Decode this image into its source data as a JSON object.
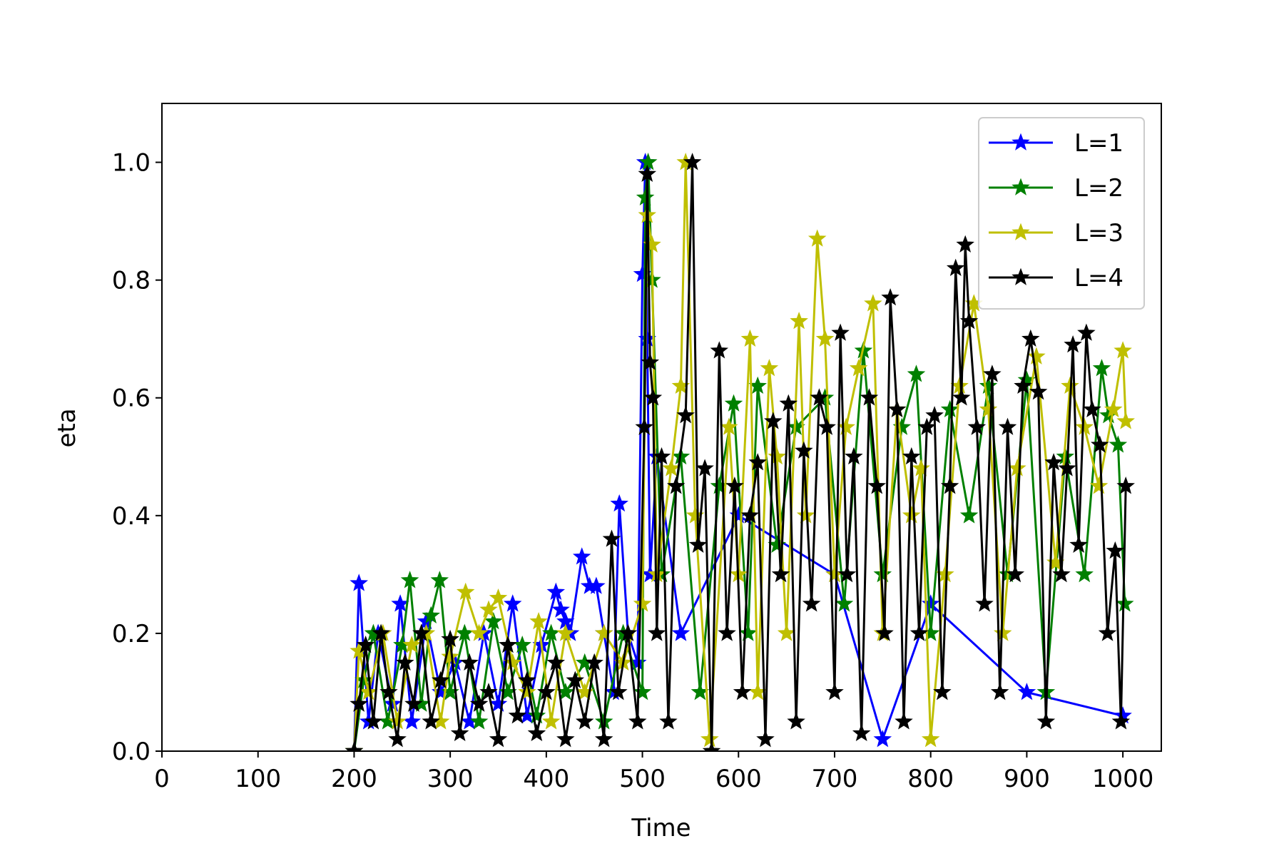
{
  "chart_data": {
    "type": "line",
    "title": "",
    "xlabel": "Time",
    "ylabel": "eta",
    "xlim": [
      0,
      1040
    ],
    "ylim": [
      0,
      1.1
    ],
    "xticks": [
      0,
      100,
      200,
      300,
      400,
      500,
      600,
      700,
      800,
      900,
      1000
    ],
    "yticks": [
      0.0,
      0.2,
      0.4,
      0.6,
      0.8,
      1.0
    ],
    "xtick_labels": [
      "0",
      "100",
      "200",
      "300",
      "400",
      "500",
      "600",
      "700",
      "800",
      "900",
      "1000"
    ],
    "ytick_labels": [
      "0.0",
      "0.2",
      "0.4",
      "0.6",
      "0.8",
      "1.0"
    ],
    "grid": false,
    "legend_position": "top-right",
    "marker": "star",
    "series": [
      {
        "name": "L=1",
        "color": "#0000ff",
        "x": [
          200,
          205,
          215,
          225,
          240,
          248,
          260,
          275,
          290,
          305,
          320,
          335,
          350,
          365,
          380,
          395,
          410,
          415,
          420,
          425,
          437,
          445,
          452,
          460,
          470,
          476,
          485,
          495,
          500,
          503,
          505,
          508,
          515,
          540,
          600,
          700,
          750,
          800,
          900,
          1000
        ],
        "y": [
          0.0,
          0.285,
          0.05,
          0.2,
          0.08,
          0.25,
          0.05,
          0.22,
          0.1,
          0.15,
          0.05,
          0.2,
          0.08,
          0.25,
          0.06,
          0.18,
          0.27,
          0.24,
          0.22,
          0.2,
          0.33,
          0.28,
          0.28,
          0.2,
          0.1,
          0.42,
          0.2,
          0.15,
          0.81,
          1.0,
          0.7,
          0.3,
          0.5,
          0.2,
          0.4,
          0.3,
          0.02,
          0.25,
          0.1,
          0.06
        ]
      },
      {
        "name": "L=2",
        "color": "#008000",
        "x": [
          200,
          210,
          220,
          235,
          250,
          258,
          270,
          280,
          289,
          300,
          315,
          330,
          345,
          360,
          375,
          390,
          405,
          420,
          440,
          460,
          480,
          500,
          503,
          506,
          510,
          520,
          540,
          560,
          580,
          595,
          610,
          620,
          640,
          660,
          690,
          710,
          730,
          750,
          770,
          785,
          800,
          820,
          840,
          860,
          880,
          900,
          920,
          940,
          960,
          978,
          985,
          995,
          1002
        ],
        "y": [
          0.0,
          0.12,
          0.2,
          0.05,
          0.18,
          0.29,
          0.08,
          0.23,
          0.29,
          0.1,
          0.2,
          0.05,
          0.22,
          0.1,
          0.18,
          0.06,
          0.2,
          0.1,
          0.15,
          0.05,
          0.2,
          0.1,
          0.94,
          1.0,
          0.8,
          0.3,
          0.5,
          0.1,
          0.45,
          0.59,
          0.2,
          0.62,
          0.35,
          0.55,
          0.6,
          0.25,
          0.68,
          0.3,
          0.55,
          0.64,
          0.2,
          0.58,
          0.4,
          0.62,
          0.3,
          0.63,
          0.1,
          0.5,
          0.3,
          0.65,
          0.57,
          0.52,
          0.25
        ]
      },
      {
        "name": "L=3",
        "color": "#bfbf00",
        "x": [
          200,
          205,
          215,
          230,
          245,
          260,
          275,
          290,
          300,
          316,
          330,
          340,
          350,
          365,
          380,
          392,
          405,
          420,
          440,
          460,
          480,
          500,
          505,
          510,
          515,
          530,
          540,
          545,
          555,
          570,
          590,
          600,
          612,
          620,
          632,
          640,
          650,
          663,
          670,
          682,
          690,
          700,
          712,
          725,
          740,
          750,
          765,
          780,
          790,
          800,
          815,
          830,
          845,
          860,
          875,
          890,
          910,
          930,
          945,
          960,
          975,
          990,
          1000,
          1003
        ],
        "y": [
          0.0,
          0.17,
          0.1,
          0.2,
          0.05,
          0.18,
          0.2,
          0.05,
          0.16,
          0.27,
          0.2,
          0.24,
          0.26,
          0.15,
          0.1,
          0.22,
          0.05,
          0.2,
          0.1,
          0.2,
          0.15,
          0.25,
          0.91,
          0.86,
          0.3,
          0.48,
          0.62,
          1.0,
          0.4,
          0.02,
          0.55,
          0.3,
          0.7,
          0.1,
          0.65,
          0.5,
          0.2,
          0.73,
          0.4,
          0.87,
          0.7,
          0.3,
          0.55,
          0.65,
          0.76,
          0.2,
          0.58,
          0.4,
          0.48,
          0.02,
          0.3,
          0.62,
          0.76,
          0.58,
          0.2,
          0.48,
          0.67,
          0.32,
          0.62,
          0.55,
          0.45,
          0.58,
          0.68,
          0.56
        ]
      },
      {
        "name": "L=4",
        "color": "#000000",
        "x": [
          200,
          205,
          212,
          220,
          228,
          236,
          245,
          253,
          262,
          270,
          280,
          290,
          300,
          310,
          320,
          330,
          340,
          350,
          360,
          370,
          380,
          390,
          400,
          410,
          420,
          430,
          440,
          450,
          460,
          468,
          475,
          485,
          495,
          502,
          505,
          508,
          511,
          515,
          520,
          527,
          535,
          545,
          552,
          558,
          565,
          572,
          580,
          588,
          596,
          604,
          612,
          620,
          628,
          636,
          644,
          652,
          660,
          668,
          676,
          684,
          692,
          700,
          706,
          713,
          720,
          728,
          736,
          744,
          752,
          758,
          765,
          772,
          780,
          788,
          796,
          804,
          812,
          820,
          826,
          832,
          836,
          840,
          848,
          856,
          864,
          872,
          880,
          888,
          896,
          904,
          912,
          920,
          928,
          936,
          942,
          948,
          954,
          962,
          968,
          976,
          984,
          992,
          998,
          1003
        ],
        "y": [
          0.0,
          0.08,
          0.18,
          0.05,
          0.2,
          0.1,
          0.02,
          0.15,
          0.08,
          0.2,
          0.05,
          0.12,
          0.19,
          0.03,
          0.15,
          0.08,
          0.1,
          0.02,
          0.18,
          0.06,
          0.12,
          0.03,
          0.1,
          0.15,
          0.02,
          0.12,
          0.05,
          0.15,
          0.02,
          0.36,
          0.1,
          0.2,
          0.05,
          0.55,
          0.98,
          0.66,
          0.6,
          0.2,
          0.5,
          0.05,
          0.45,
          0.57,
          1.0,
          0.35,
          0.48,
          0.0,
          0.68,
          0.2,
          0.45,
          0.1,
          0.4,
          0.49,
          0.02,
          0.56,
          0.3,
          0.59,
          0.05,
          0.51,
          0.25,
          0.6,
          0.55,
          0.1,
          0.71,
          0.3,
          0.5,
          0.03,
          0.6,
          0.45,
          0.2,
          0.77,
          0.58,
          0.05,
          0.5,
          0.2,
          0.55,
          0.57,
          0.1,
          0.45,
          0.82,
          0.6,
          0.86,
          0.73,
          0.55,
          0.25,
          0.64,
          0.1,
          0.55,
          0.3,
          0.62,
          0.7,
          0.61,
          0.05,
          0.49,
          0.3,
          0.48,
          0.69,
          0.35,
          0.71,
          0.58,
          0.52,
          0.2,
          0.34,
          0.05,
          0.45
        ]
      }
    ]
  }
}
